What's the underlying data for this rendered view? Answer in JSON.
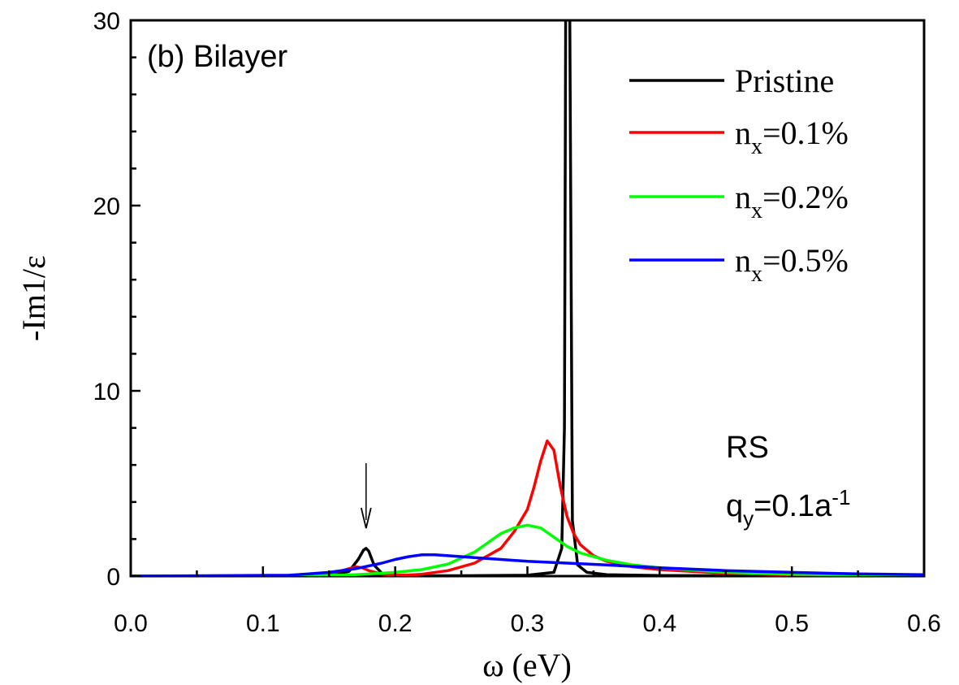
{
  "chart_data": {
    "type": "line",
    "panel_label": "(b) Bilayer",
    "xlabel": "ω (eV)",
    "ylabel": "-Im1/ε",
    "xlim": [
      0.0,
      0.6
    ],
    "ylim": [
      0,
      30
    ],
    "x_ticks": [
      "0.0",
      "0.1",
      "0.2",
      "0.3",
      "0.4",
      "0.5",
      "0.6"
    ],
    "y_ticks": [
      "0",
      "10",
      "20",
      "30"
    ],
    "legend_position": "top-right",
    "grid": false,
    "annotations": {
      "model": "RS",
      "q_main": "q",
      "q_sub": "y",
      "q_value": "=0.1a",
      "q_sup": "-1",
      "arrow_x": 0.178
    },
    "series": [
      {
        "name": "Pristine",
        "color": "#000000",
        "x": [
          0.0,
          0.1,
          0.15,
          0.165,
          0.172,
          0.176,
          0.178,
          0.18,
          0.184,
          0.19,
          0.2,
          0.25,
          0.3,
          0.32,
          0.326,
          0.328,
          0.329,
          0.33,
          0.331,
          0.332,
          0.334,
          0.338,
          0.345,
          0.36,
          0.4,
          0.5,
          0.6
        ],
        "y": [
          0.0,
          0.0,
          0.05,
          0.25,
          0.9,
          1.4,
          1.5,
          1.35,
          0.6,
          0.15,
          0.02,
          0.02,
          0.05,
          0.2,
          1.5,
          8,
          31,
          31,
          31,
          31,
          3,
          0.6,
          0.2,
          0.08,
          0.03,
          0.01,
          0.0
        ]
      },
      {
        "name": "n",
        "name_sub": "x",
        "name_rest": "=0.1%",
        "color": "#ff0000",
        "x": [
          0.0,
          0.13,
          0.15,
          0.16,
          0.17,
          0.175,
          0.18,
          0.19,
          0.2,
          0.21,
          0.22,
          0.24,
          0.26,
          0.28,
          0.29,
          0.3,
          0.305,
          0.31,
          0.315,
          0.32,
          0.325,
          0.33,
          0.335,
          0.34,
          0.35,
          0.36,
          0.38,
          0.4,
          0.45,
          0.5,
          0.6
        ],
        "y": [
          0.0,
          0.02,
          0.12,
          0.3,
          0.5,
          0.45,
          0.3,
          0.1,
          0.05,
          0.06,
          0.1,
          0.3,
          0.7,
          1.5,
          2.4,
          3.6,
          4.8,
          6.2,
          7.3,
          6.8,
          4.8,
          3.2,
          2.3,
          1.7,
          1.1,
          0.8,
          0.5,
          0.35,
          0.15,
          0.07,
          0.02
        ]
      },
      {
        "name": "n",
        "name_sub": "x",
        "name_rest": "=0.2%",
        "color": "#00ff00",
        "x": [
          0.0,
          0.14,
          0.17,
          0.2,
          0.22,
          0.24,
          0.26,
          0.27,
          0.28,
          0.29,
          0.3,
          0.31,
          0.32,
          0.33,
          0.34,
          0.36,
          0.38,
          0.4,
          0.45,
          0.5,
          0.6
        ],
        "y": [
          0.0,
          0.03,
          0.08,
          0.2,
          0.35,
          0.65,
          1.3,
          1.8,
          2.3,
          2.6,
          2.75,
          2.6,
          2.1,
          1.6,
          1.25,
          0.85,
          0.6,
          0.45,
          0.2,
          0.1,
          0.03
        ]
      },
      {
        "name": "n",
        "name_sub": "x",
        "name_rest": "=0.5%",
        "color": "#0000ff",
        "x": [
          0.0,
          0.12,
          0.15,
          0.17,
          0.19,
          0.2,
          0.21,
          0.22,
          0.23,
          0.24,
          0.26,
          0.28,
          0.3,
          0.33,
          0.36,
          0.4,
          0.45,
          0.5,
          0.55,
          0.6
        ],
        "y": [
          0.0,
          0.05,
          0.2,
          0.4,
          0.7,
          0.9,
          1.05,
          1.15,
          1.15,
          1.1,
          1.0,
          0.9,
          0.8,
          0.7,
          0.6,
          0.45,
          0.3,
          0.2,
          0.12,
          0.08
        ]
      }
    ]
  }
}
